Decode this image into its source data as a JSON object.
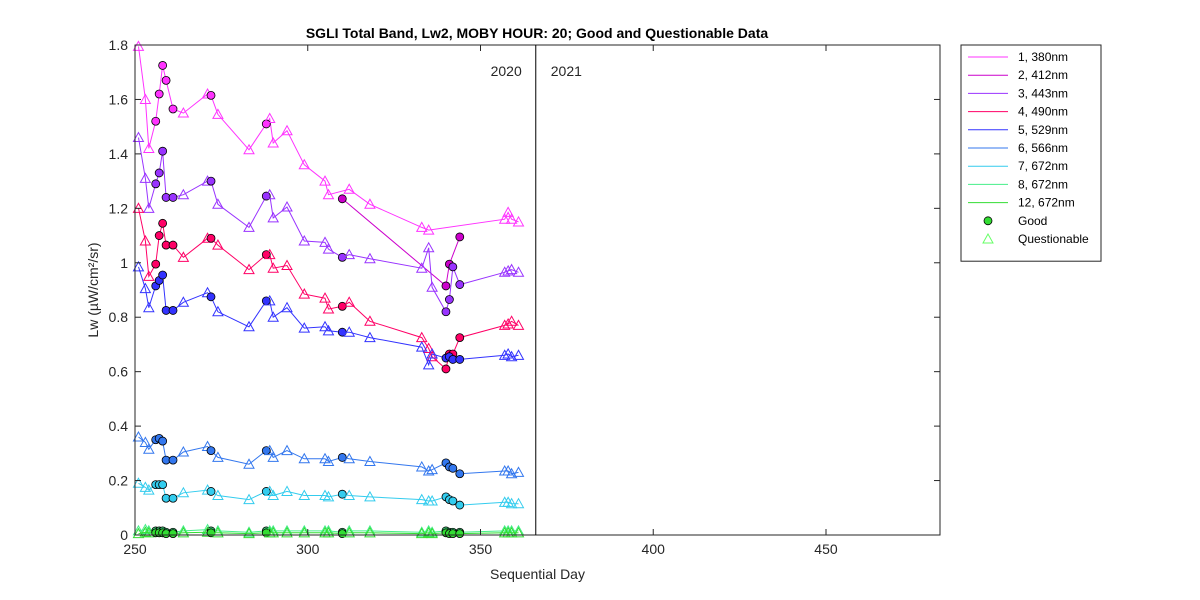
{
  "chart_data": {
    "type": "line",
    "title": "SGLI Total Band,  Lw2, MOBY HOUR: 20;  Good and Questionable Data",
    "xlabel": "Sequential Day",
    "ylabel": "Lw (µW/cm²/sr)",
    "xlim": [
      250,
      483
    ],
    "ylim": [
      0,
      1.8
    ],
    "xticks": [
      250,
      300,
      350,
      400,
      450
    ],
    "xtick_labels": [
      "250",
      "300",
      "350",
      "400",
      "450"
    ],
    "yticks": [
      0,
      0.2,
      0.4,
      0.6,
      0.8,
      1,
      1.2,
      1.4,
      1.6,
      1.8
    ],
    "ytick_labels": [
      "0",
      "0.2",
      "0.4",
      "0.6",
      "0.8",
      "1",
      "1.2",
      "1.4",
      "1.6",
      "1.8"
    ],
    "grid": false,
    "legend_position": "outside-right",
    "year_divider_x": 366,
    "year_labels": [
      "2020",
      "2021"
    ],
    "x": [
      251,
      253,
      254,
      256,
      257,
      258,
      259,
      261,
      264,
      271,
      272,
      274,
      283,
      288,
      289,
      290,
      294,
      299,
      305,
      306,
      310,
      312,
      318,
      333,
      335,
      336,
      340,
      341,
      342,
      344,
      357,
      358,
      359,
      361
    ],
    "quality": [
      "Q",
      "Q",
      "Q",
      "G",
      "G",
      "G",
      "G",
      "G",
      "Q",
      "Q",
      "G",
      "Q",
      "Q",
      "G",
      "Q",
      "Q",
      "Q",
      "Q",
      "Q",
      "Q",
      "G",
      "Q",
      "Q",
      "Q",
      "Q",
      "Q",
      "G",
      "G",
      "G",
      "G",
      "Q",
      "Q",
      "Q",
      "Q"
    ],
    "series": [
      {
        "name": "1, 380nm",
        "color": "#ff33ff",
        "values": [
          1.795,
          1.6,
          1.42,
          1.52,
          1.62,
          1.725,
          1.67,
          1.565,
          1.55,
          1.62,
          1.615,
          1.545,
          1.415,
          1.51,
          1.53,
          1.44,
          1.485,
          1.36,
          1.3,
          1.25,
          null,
          1.27,
          1.215,
          1.13,
          1.12,
          null,
          null,
          null,
          null,
          null,
          1.16,
          1.185,
          1.16,
          1.15
        ]
      },
      {
        "name": "2, 412nm",
        "color": "#cc00cc",
        "values": [
          null,
          null,
          null,
          null,
          null,
          null,
          null,
          null,
          null,
          null,
          null,
          null,
          null,
          null,
          null,
          null,
          null,
          null,
          null,
          null,
          1.235,
          null,
          null,
          null,
          null,
          null,
          0.915,
          0.995,
          null,
          1.095,
          null,
          null,
          null,
          null
        ]
      },
      {
        "name": "3, 443nm",
        "color": "#9933ff",
        "values": [
          1.46,
          1.31,
          1.2,
          1.29,
          1.33,
          1.41,
          1.24,
          1.24,
          1.25,
          1.3,
          1.3,
          1.215,
          1.13,
          1.245,
          1.25,
          1.165,
          1.205,
          1.08,
          1.075,
          1.05,
          1.02,
          1.03,
          1.015,
          0.98,
          1.055,
          0.91,
          0.82,
          0.865,
          0.985,
          0.92,
          0.965,
          0.97,
          0.975,
          0.965
        ]
      },
      {
        "name": "4, 490nm",
        "color": "#ff0066",
        "values": [
          1.2,
          1.08,
          0.95,
          0.995,
          1.1,
          1.145,
          1.065,
          1.065,
          1.02,
          1.09,
          1.09,
          1.065,
          0.975,
          1.03,
          1.03,
          0.98,
          0.99,
          0.885,
          0.87,
          0.83,
          0.84,
          0.855,
          0.785,
          0.725,
          0.685,
          0.655,
          0.61,
          0.665,
          0.665,
          0.725,
          0.77,
          0.775,
          0.785,
          0.77
        ]
      },
      {
        "name": "5, 529nm",
        "color": "#3333ff",
        "values": [
          0.985,
          0.905,
          0.835,
          0.915,
          0.935,
          0.955,
          0.825,
          0.825,
          0.855,
          0.89,
          0.875,
          0.82,
          0.765,
          0.86,
          0.86,
          0.8,
          0.835,
          0.76,
          0.765,
          0.75,
          0.745,
          0.745,
          0.725,
          0.69,
          0.625,
          0.665,
          0.65,
          0.655,
          0.645,
          0.645,
          0.66,
          0.665,
          0.655,
          0.66
        ]
      },
      {
        "name": "6, 566nm",
        "color": "#3377ee",
        "values": [
          0.36,
          0.34,
          0.315,
          0.35,
          0.355,
          0.345,
          0.275,
          0.275,
          0.305,
          0.325,
          0.31,
          0.285,
          0.26,
          0.31,
          0.31,
          0.285,
          0.31,
          0.28,
          0.28,
          0.27,
          0.285,
          0.28,
          0.27,
          0.25,
          0.235,
          0.24,
          0.265,
          0.25,
          0.245,
          0.225,
          0.235,
          0.235,
          0.225,
          0.23
        ]
      },
      {
        "name": "7, 672nm",
        "color": "#33ccee",
        "values": [
          0.19,
          0.175,
          0.165,
          0.185,
          0.185,
          0.185,
          0.135,
          0.135,
          0.155,
          0.165,
          0.16,
          0.145,
          0.13,
          0.16,
          0.16,
          0.145,
          0.16,
          0.145,
          0.145,
          0.14,
          0.15,
          0.145,
          0.14,
          0.13,
          0.125,
          0.125,
          0.14,
          0.13,
          0.125,
          0.11,
          0.12,
          0.12,
          0.115,
          0.115
        ]
      },
      {
        "name": "8, 672nm",
        "color": "#44ee88",
        "values": [
          0.015,
          0.02,
          0.015,
          0.015,
          0.015,
          0.015,
          0.01,
          0.01,
          0.015,
          0.02,
          0.015,
          0.015,
          0.01,
          0.015,
          0.015,
          0.015,
          0.015,
          0.015,
          0.015,
          0.015,
          0.01,
          0.015,
          0.015,
          0.01,
          0.015,
          0.01,
          0.015,
          0.01,
          0.01,
          0.01,
          0.015,
          0.015,
          0.015,
          0.015
        ]
      },
      {
        "name": "12, 672nm",
        "color": "#33dd33",
        "values": [
          0.005,
          0.01,
          0.008,
          0.008,
          0.008,
          0.008,
          0.005,
          0.005,
          0.008,
          0.01,
          0.008,
          0.008,
          0.005,
          0.008,
          0.008,
          0.008,
          0.008,
          0.008,
          0.008,
          0.008,
          0.005,
          0.008,
          0.008,
          0.005,
          0.008,
          0.005,
          0.008,
          0.005,
          0.005,
          0.005,
          0.008,
          0.008,
          0.008,
          0.008
        ]
      }
    ],
    "legend_extra": [
      {
        "name": "Good",
        "marker": "circle",
        "color": "#33dd33"
      },
      {
        "name": "Questionable",
        "marker": "triangle",
        "color": "#66ff66"
      }
    ]
  }
}
